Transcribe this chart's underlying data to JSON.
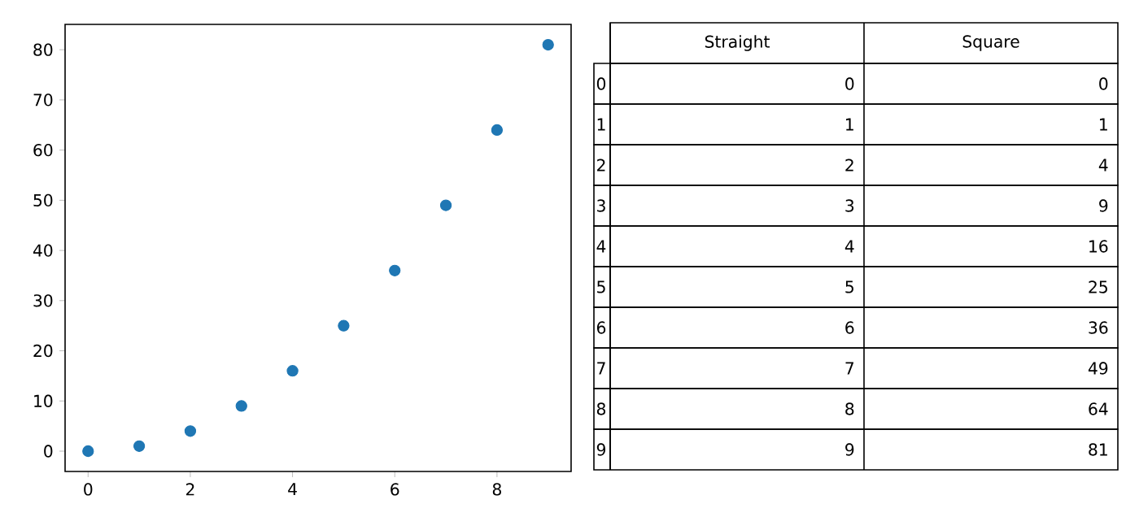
{
  "chart_data": [
    {
      "type": "scatter",
      "x": [
        0,
        1,
        2,
        3,
        4,
        5,
        6,
        7,
        8,
        9
      ],
      "values": [
        0,
        1,
        4,
        9,
        16,
        25,
        36,
        49,
        64,
        81
      ],
      "color": "#1f77b4",
      "xlim": [
        -0.45,
        9.45
      ],
      "ylim": [
        -4.05,
        85.05
      ],
      "xticks": [
        0,
        2,
        4,
        6,
        8
      ],
      "yticks": [
        0,
        10,
        20,
        30,
        40,
        50,
        60,
        70,
        80
      ],
      "grid": false
    },
    {
      "type": "heatmap",
      "categories": [
        "Straight",
        "Square"
      ],
      "y_categories": [
        "0",
        "1",
        "2",
        "3",
        "4",
        "5",
        "6",
        "7",
        "8",
        "9"
      ],
      "data_labels": true,
      "cells": [
        [
          0,
          0
        ],
        [
          1,
          1
        ],
        [
          2,
          4
        ],
        [
          3,
          9
        ],
        [
          4,
          16
        ],
        [
          5,
          25
        ],
        [
          6,
          36
        ],
        [
          7,
          49
        ],
        [
          8,
          64
        ],
        [
          9,
          81
        ]
      ]
    }
  ]
}
